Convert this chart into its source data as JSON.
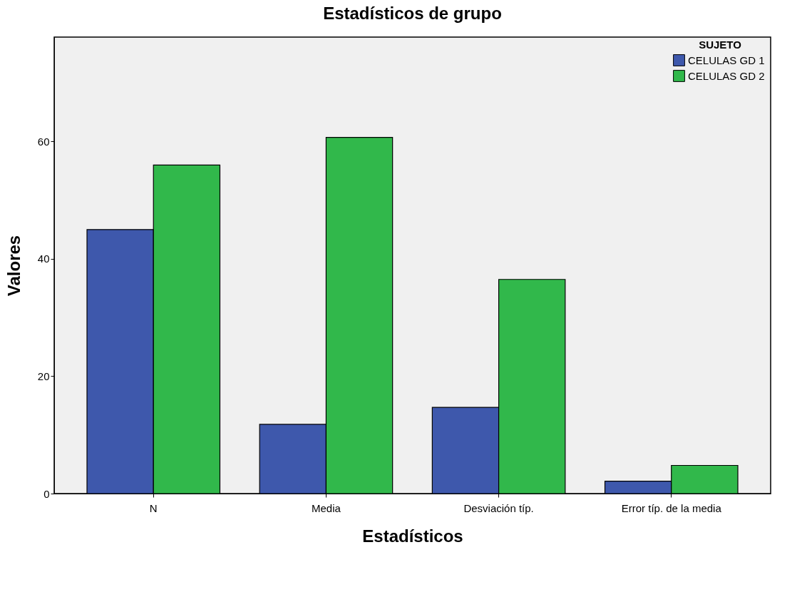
{
  "chart_data": {
    "type": "bar",
    "title": "Estadísticos de grupo",
    "xlabel": "Estadísticos",
    "ylabel": "Valores",
    "legend_title": "SUJETO",
    "categories": [
      "N",
      "Media",
      "Desviación típ.",
      "Error típ. de la media"
    ],
    "series": [
      {
        "name": "CELULAS  GD 1",
        "color": "#3e58ac",
        "values": [
          45,
          11.8,
          14.7,
          2.1
        ]
      },
      {
        "name": "CELULAS  GD 2",
        "color": "#31b84b",
        "values": [
          56,
          60.7,
          36.5,
          4.8
        ]
      }
    ],
    "ylim": [
      0,
      77.8
    ],
    "yticks": [
      0,
      20,
      40,
      60
    ],
    "grid": false,
    "legend": "top right"
  }
}
